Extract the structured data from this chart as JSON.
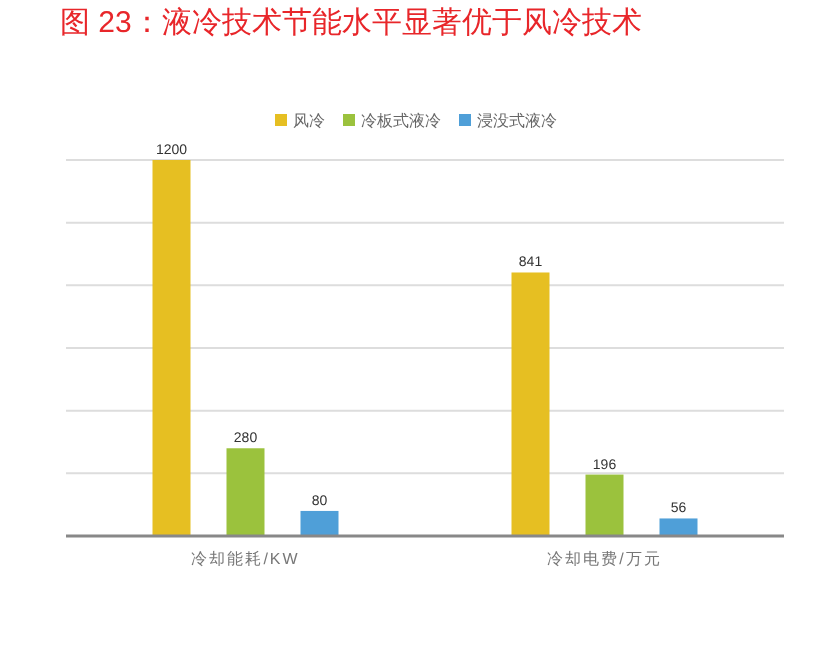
{
  "chart_data": {
    "type": "bar",
    "title": "图 23：液冷技术节能水平显著优于风冷技术",
    "categories": [
      "冷却能耗/KW",
      "冷却电费/万元"
    ],
    "series": [
      {
        "name": "风冷",
        "color": "#e6bf22",
        "values": [
          1200,
          841
        ]
      },
      {
        "name": "冷板式液冷",
        "color": "#9bc23d",
        "values": [
          280,
          196
        ]
      },
      {
        "name": "浸没式液冷",
        "color": "#4f9fd8",
        "values": [
          80,
          56
        ]
      }
    ],
    "ylim": [
      0,
      1200
    ],
    "yticks": [
      {
        "value": 0,
        "label": null
      },
      {
        "value": 200,
        "label": null
      },
      {
        "value": 400,
        "label": null
      },
      {
        "value": 600,
        "label": null
      },
      {
        "value": 800,
        "label": null
      },
      {
        "value": 1000,
        "label": null
      },
      {
        "value": 1200,
        "label": null
      }
    ],
    "grid": "y",
    "legend": "top",
    "data_labels": true,
    "tick_labels": "x"
  }
}
